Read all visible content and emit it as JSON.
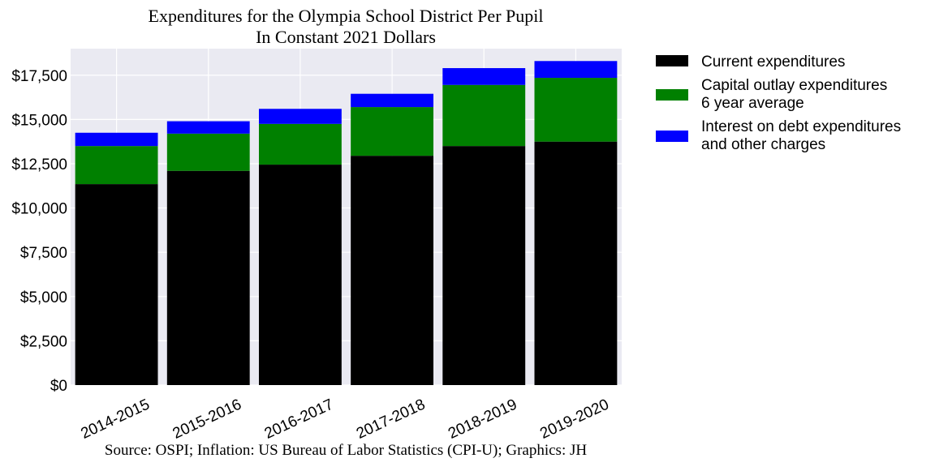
{
  "chart_data": {
    "type": "bar",
    "stacked": true,
    "title": "Expenditures for the Olympia School District Per Pupil",
    "subtitle": "In Constant 2021 Dollars",
    "source": "Source: OSPI; Inflation: US Bureau of Labor Statistics (CPI-U); Graphics: JH",
    "categories": [
      "2014-2015",
      "2015-2016",
      "2016-2017",
      "2017-2018",
      "2018-2019",
      "2019-2020"
    ],
    "series": [
      {
        "name": "Current expenditures",
        "color": "#000000",
        "values": [
          11350,
          12100,
          12450,
          12950,
          13500,
          13750
        ]
      },
      {
        "name": "Capital outlay expenditures\n6 year average",
        "color": "#008000",
        "values": [
          2150,
          2100,
          2300,
          2750,
          3450,
          3600
        ]
      },
      {
        "name": "Interest on debt expenditures\nand other charges",
        "color": "#0000ff",
        "values": [
          750,
          700,
          850,
          750,
          950,
          950
        ]
      }
    ],
    "ylim": [
      0,
      19000
    ],
    "yticks": [
      0,
      2500,
      5000,
      7500,
      10000,
      12500,
      15000,
      17500
    ],
    "ytick_labels": [
      "$0",
      "$2,500",
      "$5,000",
      "$7,500",
      "$10,000",
      "$12,500",
      "$15,000",
      "$17,500"
    ],
    "grid": true,
    "legend_position": "outside-right",
    "background_color": "#eaeaf2"
  }
}
